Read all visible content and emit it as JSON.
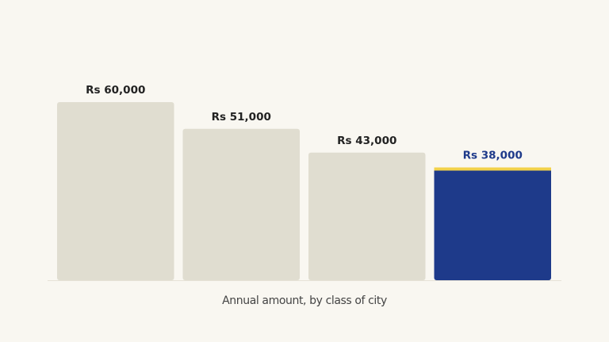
{
  "chart_data": {
    "type": "bar",
    "x_label": "Annual amount, by class of city",
    "categories": [
      null,
      null,
      null,
      null
    ],
    "values": [
      60000,
      51000,
      43000,
      38000
    ],
    "value_labels": [
      "Rs 60,000",
      "Rs 51,000",
      "Rs 43,000",
      "Rs 38,000"
    ],
    "colors": [
      "#e0ddd0",
      "#e0ddd0",
      "#e0ddd0",
      "#1e3a8a"
    ],
    "label_colors": [
      "#222222",
      "#222222",
      "#222222",
      "#1e3a8a"
    ],
    "stripe_colors": [
      null,
      null,
      null,
      "#f2d24a"
    ],
    "ylim": [
      0,
      60000
    ]
  }
}
